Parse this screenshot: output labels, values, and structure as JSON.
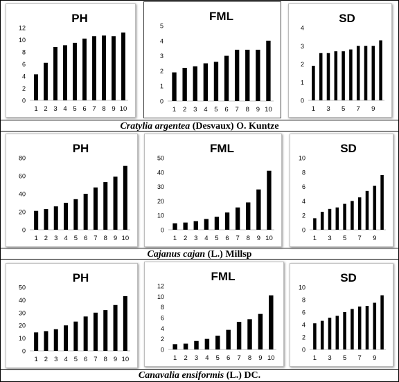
{
  "captions": {
    "row1": {
      "species": "Cratylia argentea",
      "author": " (Desvaux) O. Kuntze"
    },
    "row2": {
      "species": "Cajanus cajan",
      "author": " (L.) Millsp"
    },
    "row3": {
      "species": "Canavalia ensiformis",
      "author": " (L.) DC."
    }
  },
  "chart_data": [
    {
      "id": "r1c1",
      "type": "bar",
      "title": "PH",
      "categories": [
        "1",
        "2",
        "3",
        "4",
        "5",
        "6",
        "7",
        "8",
        "9",
        "10"
      ],
      "x_tick_labels": [
        "1",
        "2",
        "3",
        "4",
        "5",
        "6",
        "7",
        "8",
        "9",
        "10"
      ],
      "values": [
        4.3,
        6.2,
        8.8,
        9.1,
        9.5,
        10.2,
        10.6,
        10.7,
        10.6,
        11.2
      ],
      "ylim": [
        0,
        12
      ],
      "yticks": [
        "0",
        "2",
        "4",
        "6",
        "8",
        "10",
        "12"
      ],
      "grid": false
    },
    {
      "id": "r1c2",
      "type": "bar",
      "title": "FML",
      "categories": [
        "1",
        "2",
        "3",
        "4",
        "5",
        "6",
        "7",
        "8",
        "9",
        "10"
      ],
      "x_tick_labels": [
        "1",
        "2",
        "3",
        "4",
        "5",
        "6",
        "7",
        "8",
        "9",
        "10"
      ],
      "values": [
        1.9,
        2.2,
        2.3,
        2.5,
        2.6,
        3.0,
        3.4,
        3.4,
        3.4,
        4.0
      ],
      "ylim": [
        0,
        5
      ],
      "yticks": [
        "0",
        "1",
        "2",
        "3",
        "4",
        "5"
      ],
      "grid": false
    },
    {
      "id": "r1c3",
      "type": "bar",
      "title": "SD",
      "categories": [
        "1",
        "2",
        "3",
        "4",
        "5",
        "6",
        "7",
        "8",
        "9",
        "10"
      ],
      "x_tick_labels": [
        "1",
        "",
        "3",
        "",
        "5",
        "",
        "7",
        "",
        "9",
        ""
      ],
      "values": [
        1.9,
        2.6,
        2.6,
        2.7,
        2.7,
        2.8,
        3.0,
        3.0,
        3.0,
        3.3
      ],
      "ylim": [
        0,
        4
      ],
      "yticks": [
        "0",
        "1",
        "2",
        "3",
        "4"
      ],
      "grid": false
    },
    {
      "id": "r2c1",
      "type": "bar",
      "title": "PH",
      "categories": [
        "1",
        "2",
        "3",
        "4",
        "5",
        "6",
        "7",
        "8",
        "9",
        "10"
      ],
      "x_tick_labels": [
        "1",
        "2",
        "3",
        "4",
        "5",
        "6",
        "7",
        "8",
        "9",
        "10"
      ],
      "values": [
        21,
        23,
        26,
        30,
        34,
        40,
        47,
        53,
        59,
        71
      ],
      "ylim": [
        0,
        80
      ],
      "yticks": [
        "0",
        "20",
        "40",
        "60",
        "80"
      ],
      "grid": false
    },
    {
      "id": "r2c2",
      "type": "bar",
      "title": "FML",
      "categories": [
        "1",
        "2",
        "3",
        "4",
        "5",
        "6",
        "7",
        "8",
        "9",
        "10"
      ],
      "x_tick_labels": [
        "1",
        "2",
        "3",
        "4",
        "5",
        "6",
        "7",
        "8",
        "9",
        "10"
      ],
      "values": [
        4.5,
        5.0,
        6.0,
        7.5,
        9.0,
        12.0,
        15.5,
        19.0,
        28.0,
        41.0
      ],
      "ylim": [
        0,
        50
      ],
      "yticks": [
        "0",
        "10",
        "20",
        "30",
        "40",
        "50"
      ],
      "grid": false
    },
    {
      "id": "r2c3",
      "type": "bar",
      "title": "SD",
      "categories": [
        "1",
        "2",
        "3",
        "4",
        "5",
        "6",
        "7",
        "8",
        "9",
        "10"
      ],
      "x_tick_labels": [
        "1",
        "",
        "3",
        "",
        "5",
        "",
        "7",
        "",
        "9",
        ""
      ],
      "values": [
        1.6,
        2.5,
        2.9,
        3.1,
        3.6,
        4.0,
        4.5,
        5.4,
        6.1,
        7.6
      ],
      "ylim": [
        0,
        10
      ],
      "yticks": [
        "0",
        "2",
        "4",
        "6",
        "8",
        "10"
      ],
      "grid": false
    },
    {
      "id": "r3c1",
      "type": "bar",
      "title": "PH",
      "categories": [
        "1",
        "2",
        "3",
        "4",
        "5",
        "6",
        "7",
        "8",
        "9",
        "10"
      ],
      "x_tick_labels": [
        "1",
        "2",
        "3",
        "4",
        "5",
        "6",
        "7",
        "8",
        "9",
        "10"
      ],
      "values": [
        14.5,
        15.5,
        17,
        20,
        23,
        27,
        30,
        32,
        36,
        43
      ],
      "ylim": [
        0,
        50
      ],
      "yticks": [
        "0",
        "10",
        "20",
        "30",
        "40",
        "50"
      ],
      "grid": false
    },
    {
      "id": "r3c2",
      "type": "bar",
      "title": "FML",
      "categories": [
        "1",
        "2",
        "3",
        "4",
        "5",
        "6",
        "7",
        "8",
        "9",
        "10"
      ],
      "x_tick_labels": [
        "1",
        "2",
        "3",
        "4",
        "5",
        "6",
        "7",
        "8",
        "9",
        "10"
      ],
      "values": [
        1.0,
        1.1,
        1.6,
        2.0,
        2.6,
        3.7,
        5.2,
        5.7,
        6.7,
        10.2
      ],
      "ylim": [
        0,
        12
      ],
      "yticks": [
        "0",
        "2",
        "4",
        "6",
        "8",
        "10",
        "12"
      ],
      "grid": false
    },
    {
      "id": "r3c3",
      "type": "bar",
      "title": "SD",
      "categories": [
        "1",
        "2",
        "3",
        "4",
        "5",
        "6",
        "7",
        "8",
        "9",
        "10"
      ],
      "x_tick_labels": [
        "1",
        "",
        "3",
        "",
        "5",
        "",
        "7",
        "",
        "9",
        ""
      ],
      "values": [
        4.2,
        4.6,
        5.1,
        5.4,
        6.0,
        6.5,
        6.9,
        7.0,
        7.5,
        8.7
      ],
      "ylim": [
        0,
        10
      ],
      "yticks": [
        "0",
        "2",
        "4",
        "6",
        "8",
        "10"
      ],
      "grid": false
    }
  ]
}
